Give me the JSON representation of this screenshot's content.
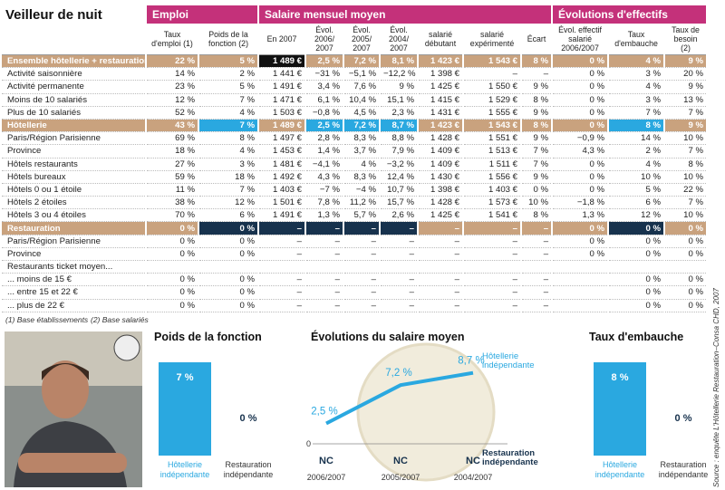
{
  "header": {
    "title": "Veilleur de nuit"
  },
  "table": {
    "groups": [
      "Emploi",
      "Salaire mensuel moyen",
      "Évolutions d'effectifs"
    ],
    "columns": [
      "Taux d'emploi (1)",
      "Poids de la fonction (2)",
      "En 2007",
      "Évol. 2006/ 2007",
      "Évol. 2005/ 2007",
      "Évol. 2004/ 2007",
      "salarié débutant",
      "salarié expérimenté",
      "Écart",
      "Évol. effectif salarié 2006/2007",
      "Taux d'embauche",
      "Taux de besoin (2)"
    ],
    "rows": [
      {
        "label": "Ensemble hôtellerie + restauration",
        "cells": [
          "22 %",
          "5 %",
          "1 489 €",
          "2,5 %",
          "7,2 %",
          "8,1 %",
          "1 423 €",
          "1 543 €",
          "8 %",
          "0 %",
          "4 %",
          "9 %"
        ]
      },
      {
        "label": "Activité saisonnière",
        "cells": [
          "14 %",
          "2 %",
          "1 441 €",
          "−31 %",
          "−5,1 %",
          "−12,2 %",
          "1 398 €",
          "–",
          "–",
          "0 %",
          "3 %",
          "20 %"
        ]
      },
      {
        "label": "Activité permanente",
        "cells": [
          "23 %",
          "5 %",
          "1 491 €",
          "3,4 %",
          "7,6 %",
          "9 %",
          "1 425 €",
          "1 550 €",
          "9 %",
          "0 %",
          "4 %",
          "9 %"
        ]
      },
      {
        "label": "Moins de 10 salariés",
        "cells": [
          "12 %",
          "7 %",
          "1 471 €",
          "6,1 %",
          "10,4 %",
          "15,1 %",
          "1 415 €",
          "1 529 €",
          "8 %",
          "0 %",
          "3 %",
          "13 %"
        ]
      },
      {
        "label": "Plus de 10 salariés",
        "cells": [
          "52 %",
          "4 %",
          "1 503 €",
          "−0,8 %",
          "4,5 %",
          "2,3 %",
          "1 431 €",
          "1 555 €",
          "9 %",
          "0 %",
          "7 %",
          "7 %"
        ]
      },
      {
        "label": "Hôtellerie",
        "cells": [
          "43 %",
          "7 %",
          "1 489 €",
          "2,5 %",
          "7,2 %",
          "8,7 %",
          "1 423 €",
          "1 543 €",
          "8 %",
          "0 %",
          "8 %",
          "9 %"
        ]
      },
      {
        "label": "Paris/Région Parisienne",
        "cells": [
          "69 %",
          "8 %",
          "1 497 €",
          "2,8 %",
          "8,3 %",
          "8,8 %",
          "1 428 €",
          "1 551 €",
          "9 %",
          "−0,9 %",
          "14 %",
          "10 %"
        ]
      },
      {
        "label": "Province",
        "cells": [
          "18 %",
          "4 %",
          "1 453 €",
          "1,4 %",
          "3,7 %",
          "7,9 %",
          "1 409 €",
          "1 513 €",
          "7 %",
          "4,3 %",
          "2 %",
          "7 %"
        ]
      },
      {
        "label": "Hôtels restaurants",
        "cells": [
          "27 %",
          "3 %",
          "1 481 €",
          "−4,1 %",
          "4 %",
          "−3,2 %",
          "1 409 €",
          "1 511 €",
          "7 %",
          "0 %",
          "4 %",
          "8 %"
        ]
      },
      {
        "label": "Hôtels bureaux",
        "cells": [
          "59 %",
          "18 %",
          "1 492 €",
          "4,3 %",
          "8,3 %",
          "12,4 %",
          "1 430 €",
          "1 556 €",
          "9 %",
          "0 %",
          "10 %",
          "10 %"
        ]
      },
      {
        "label": "Hôtels 0 ou 1 étoile",
        "cells": [
          "11 %",
          "7 %",
          "1 403 €",
          "−7 %",
          "−4 %",
          "10,7 %",
          "1 398 €",
          "1 403 €",
          "0 %",
          "0 %",
          "5 %",
          "22 %"
        ]
      },
      {
        "label": "Hôtels 2 étoiles",
        "cells": [
          "38 %",
          "12 %",
          "1 501 €",
          "7,8 %",
          "11,2 %",
          "15,7 %",
          "1 428 €",
          "1 573 €",
          "10 %",
          "−1,8 %",
          "6 %",
          "7 %"
        ]
      },
      {
        "label": "Hôtels 3 ou 4 étoiles",
        "cells": [
          "70 %",
          "6 %",
          "1 491 €",
          "1,3 %",
          "5,7 %",
          "2,6 %",
          "1 425 €",
          "1 541 €",
          "8 %",
          "1,3 %",
          "12 %",
          "10 %"
        ]
      },
      {
        "label": "Restauration",
        "cells": [
          "0 %",
          "0 %",
          "–",
          "–",
          "–",
          "–",
          "–",
          "–",
          "–",
          "0 %",
          "0 %",
          "0 %"
        ]
      },
      {
        "label": "Paris/Région Parisienne",
        "cells": [
          "0 %",
          "0 %",
          "–",
          "–",
          "–",
          "–",
          "–",
          "–",
          "–",
          "0 %",
          "0 %",
          "0 %"
        ]
      },
      {
        "label": "Province",
        "cells": [
          "0 %",
          "0 %",
          "–",
          "–",
          "–",
          "–",
          "–",
          "–",
          "–",
          "0 %",
          "0 %",
          "0 %"
        ]
      },
      {
        "label": "Restaurants ticket moyen...",
        "cells": [
          null,
          null,
          null,
          null,
          null,
          null,
          null,
          null,
          null,
          null,
          null,
          null
        ]
      },
      {
        "label": "... moins de 15 €",
        "cells": [
          "0 %",
          "0 %",
          "–",
          "–",
          "–",
          "–",
          "–",
          "–",
          "–",
          null,
          "0 %",
          "0 %"
        ]
      },
      {
        "label": "... entre 15 et 22 €",
        "cells": [
          "0 %",
          "0 %",
          "–",
          "–",
          "–",
          "–",
          "–",
          "–",
          "–",
          null,
          "0 %",
          "0 %"
        ]
      },
      {
        "label": "... plus de 22 €",
        "cells": [
          "0 %",
          "0 %",
          "–",
          "–",
          "–",
          "–",
          "–",
          "–",
          "–",
          null,
          "0 %",
          "0 %"
        ]
      }
    ]
  },
  "notes": [
    "(1) Base établissements",
    "(2) Base salariés"
  ],
  "source": "Source : enquête L'Hôtellerie Restauration–Consa CHD, 2007",
  "charts": [
    {
      "type": "bar",
      "title": "Poids de la fonction",
      "categories": [
        "Hôtellerie indépendante",
        "Restauration indépendante"
      ],
      "values": [
        7,
        0
      ],
      "value_labels": [
        "7 %",
        "0 %"
      ],
      "colors": [
        "#2aa8e0",
        "#17324d"
      ],
      "ylim": [
        0,
        7
      ]
    },
    {
      "type": "line",
      "title": "Évolutions du salaire moyen",
      "x": [
        "2006/2007",
        "2005/2007",
        "2004/2007"
      ],
      "ylim": [
        0,
        10
      ],
      "yticks": [
        0
      ],
      "series": [
        {
          "name": "Hôtellerie indépendante",
          "color": "#2aa8e0",
          "values": [
            2.5,
            7.2,
            8.7
          ],
          "value_labels": [
            "2,5 %",
            "7,2 %",
            "8,7 %"
          ]
        },
        {
          "name": "Restauration indépendante",
          "color": "#17324d",
          "values": [
            null,
            null,
            null
          ],
          "value_labels": [
            "NC",
            "NC",
            "NC"
          ]
        }
      ]
    },
    {
      "type": "bar",
      "title": "Taux d'embauche",
      "categories": [
        "Hôtellerie indépendante",
        "Restauration indépendante"
      ],
      "values": [
        8,
        0
      ],
      "value_labels": [
        "8 %",
        "0 %"
      ],
      "colors": [
        "#2aa8e0",
        "#17324d"
      ],
      "ylim": [
        0,
        8
      ]
    }
  ]
}
